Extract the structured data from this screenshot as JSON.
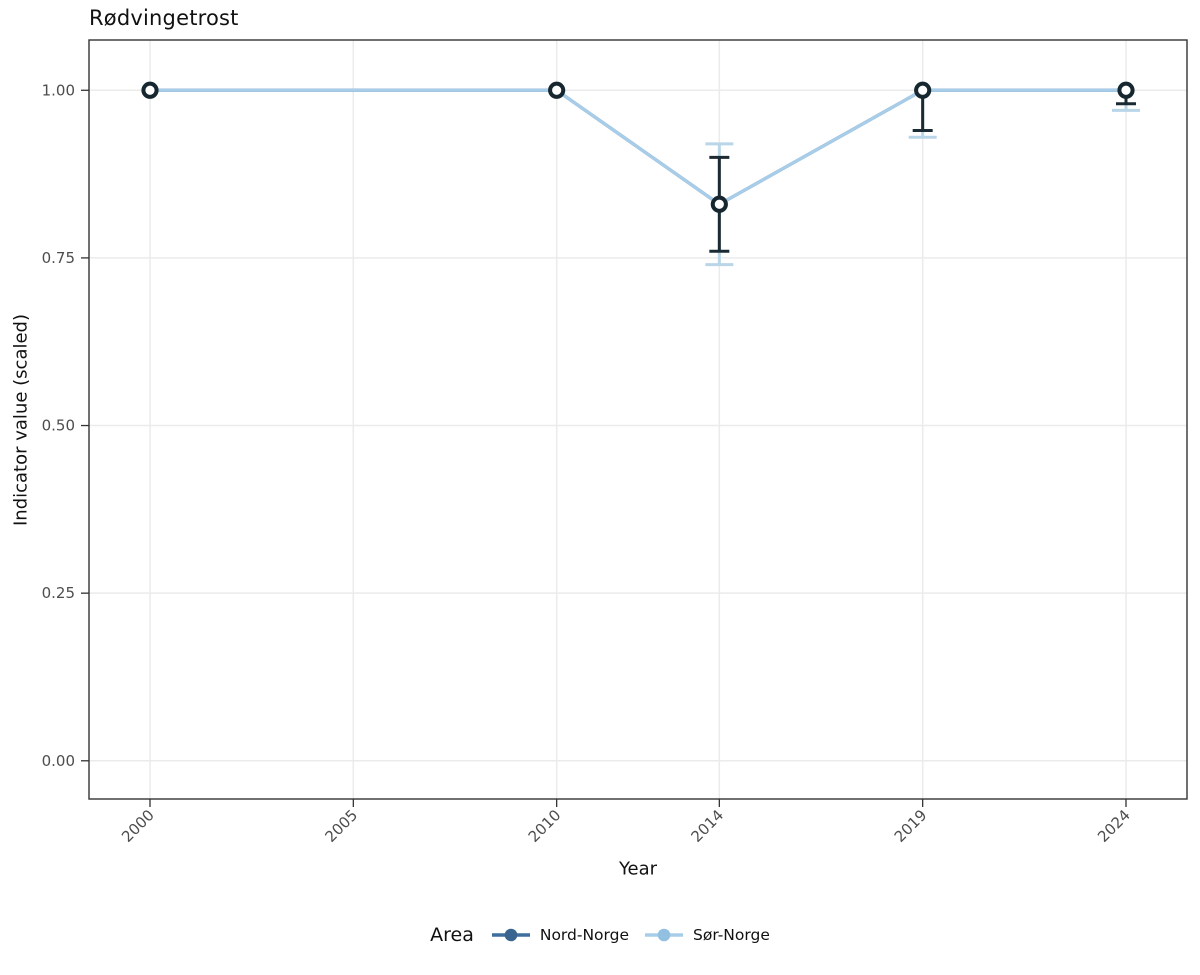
{
  "title": "Rødvingetrost",
  "chart_data": {
    "type": "line",
    "title": "Rødvingetrost",
    "xlabel": "Year",
    "ylabel": "Indicator value (scaled)",
    "legend_title": "Area",
    "legend_position": "bottom",
    "grid": true,
    "xlim": [
      1998.5,
      2025.5
    ],
    "ylim": [
      -0.057,
      1.075
    ],
    "x_ticks": [
      2000,
      2005,
      2010,
      2014,
      2019,
      2024
    ],
    "x_tick_labels": [
      "2000",
      "2005",
      "2010",
      "2014",
      "2019",
      "2024"
    ],
    "y_ticks": [
      0.0,
      0.25,
      0.5,
      0.75,
      1.0
    ],
    "y_tick_labels": [
      "0.00",
      "0.25",
      "0.50",
      "0.75",
      "1.00"
    ],
    "marker": {
      "ring_color": "#16272f",
      "fill_color": "#ffffff"
    },
    "series": [
      {
        "name": "Nord-Norge",
        "color": "#3e6e9e",
        "dot_color": "#38648f",
        "error_color": "#1b2b33",
        "cap_half_width": 10,
        "x": [
          2000,
          2010,
          2014,
          2019,
          2024
        ],
        "y": [
          1.0,
          1.0,
          0.83,
          1.0,
          1.0
        ],
        "y_lo": [
          1.0,
          1.0,
          0.76,
          0.94,
          0.98
        ],
        "y_hi": [
          1.0,
          1.0,
          0.9,
          1.0,
          1.0
        ]
      },
      {
        "name": "Sør-Norge",
        "color": "#a8cde8",
        "dot_color": "#92c0e0",
        "error_color": "#b9d5e8",
        "cap_half_width": 14,
        "x": [
          2000,
          2010,
          2014,
          2019,
          2024
        ],
        "y": [
          1.0,
          1.0,
          0.83,
          1.0,
          1.0
        ],
        "y_lo": [
          1.0,
          1.0,
          0.74,
          0.93,
          0.97
        ],
        "y_hi": [
          1.0,
          1.0,
          0.92,
          1.0,
          1.0
        ]
      }
    ],
    "style": {
      "panel_background": "#ffffff",
      "grid_color": "#ebebeb",
      "panel_border_color": "#333333",
      "tick_color": "#333333",
      "tick_label_color": "#4d4d4d"
    }
  }
}
